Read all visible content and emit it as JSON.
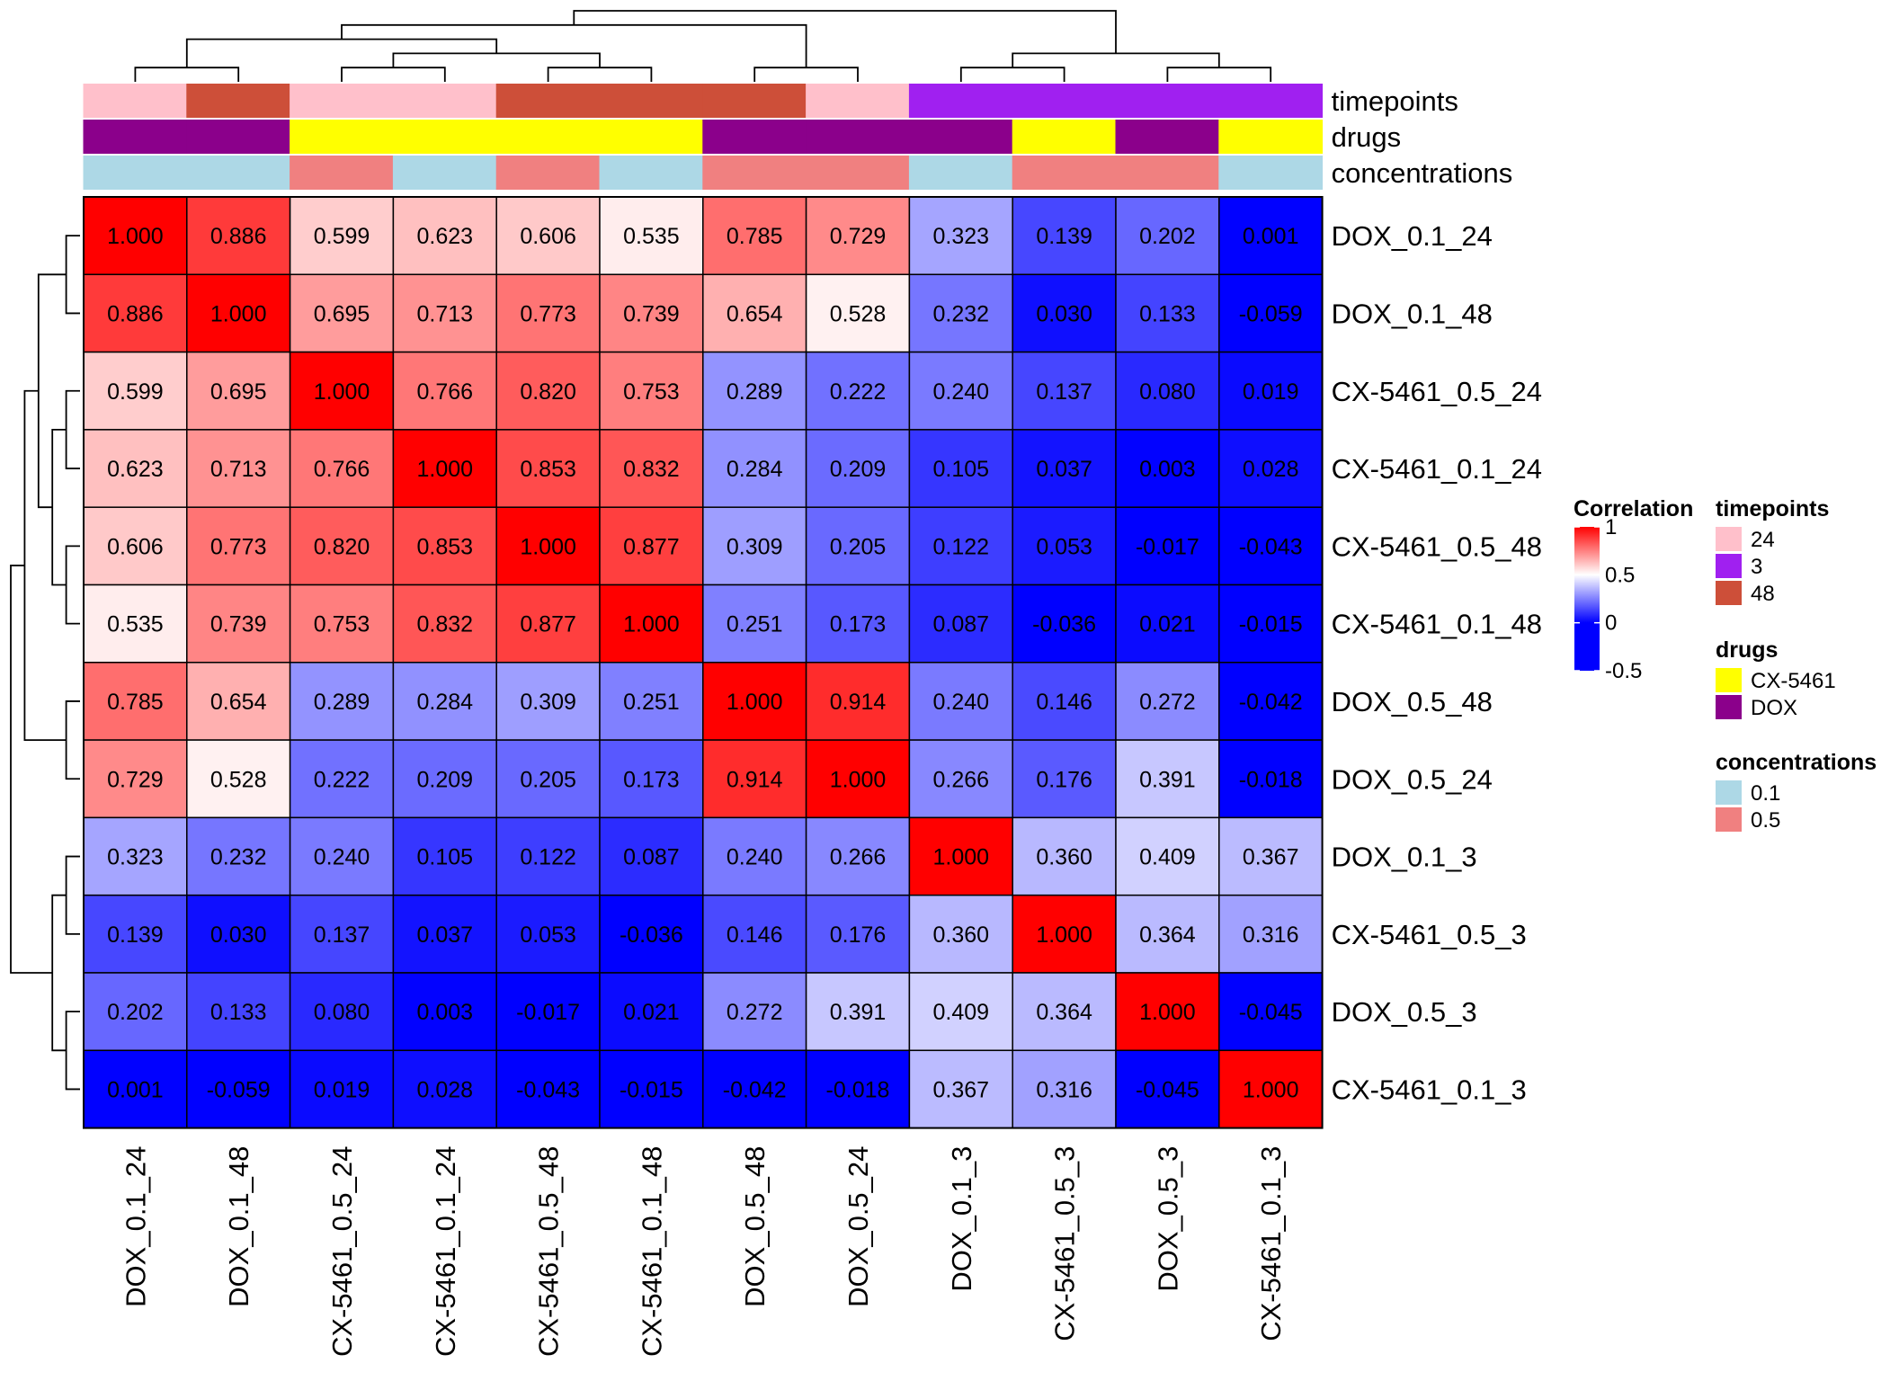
{
  "chart_data": {
    "type": "heatmap",
    "rows": [
      "DOX_0.1_24",
      "DOX_0.1_48",
      "CX-5461_0.5_24",
      "CX-5461_0.1_24",
      "CX-5461_0.5_48",
      "CX-5461_0.1_48",
      "DOX_0.5_48",
      "DOX_0.5_24",
      "DOX_0.1_3",
      "CX-5461_0.5_3",
      "DOX_0.5_3",
      "CX-5461_0.1_3"
    ],
    "columns": [
      "DOX_0.1_24",
      "DOX_0.1_48",
      "CX-5461_0.5_24",
      "CX-5461_0.1_24",
      "CX-5461_0.5_48",
      "CX-5461_0.1_48",
      "DOX_0.5_48",
      "DOX_0.5_24",
      "DOX_0.1_3",
      "CX-5461_0.5_3",
      "DOX_0.5_3",
      "CX-5461_0.1_3"
    ],
    "values": [
      [
        1.0,
        0.886,
        0.599,
        0.623,
        0.606,
        0.535,
        0.785,
        0.729,
        0.323,
        0.139,
        0.202,
        0.001
      ],
      [
        0.886,
        1.0,
        0.695,
        0.713,
        0.773,
        0.739,
        0.654,
        0.528,
        0.232,
        0.03,
        0.133,
        -0.059
      ],
      [
        0.599,
        0.695,
        1.0,
        0.766,
        0.82,
        0.753,
        0.289,
        0.222,
        0.24,
        0.137,
        0.08,
        0.019
      ],
      [
        0.623,
        0.713,
        0.766,
        1.0,
        0.853,
        0.832,
        0.284,
        0.209,
        0.105,
        0.037,
        0.003,
        0.028
      ],
      [
        0.606,
        0.773,
        0.82,
        0.853,
        1.0,
        0.877,
        0.309,
        0.205,
        0.122,
        0.053,
        -0.017,
        -0.043
      ],
      [
        0.535,
        0.739,
        0.753,
        0.832,
        0.877,
        1.0,
        0.251,
        0.173,
        0.087,
        -0.036,
        0.021,
        -0.015
      ],
      [
        0.785,
        0.654,
        0.289,
        0.284,
        0.309,
        0.251,
        1.0,
        0.914,
        0.24,
        0.146,
        0.272,
        -0.042
      ],
      [
        0.729,
        0.528,
        0.222,
        0.209,
        0.205,
        0.173,
        0.914,
        1.0,
        0.266,
        0.176,
        0.391,
        -0.018
      ],
      [
        0.323,
        0.232,
        0.24,
        0.105,
        0.122,
        0.087,
        0.24,
        0.266,
        1.0,
        0.36,
        0.409,
        0.367
      ],
      [
        0.139,
        0.03,
        0.137,
        0.037,
        0.053,
        -0.036,
        0.146,
        0.176,
        0.36,
        1.0,
        0.364,
        0.316
      ],
      [
        0.202,
        0.133,
        0.08,
        0.003,
        -0.017,
        0.021,
        0.272,
        0.391,
        0.409,
        0.364,
        1.0,
        -0.045
      ],
      [
        0.001,
        -0.059,
        0.019,
        0.028,
        -0.043,
        -0.015,
        -0.042,
        -0.018,
        0.367,
        0.316,
        -0.045,
        1.0
      ]
    ],
    "value_format": "3 decimals",
    "annotations": {
      "timepoints": {
        "label": "timepoints",
        "values": [
          "24",
          "48",
          "24",
          "24",
          "48",
          "48",
          "48",
          "24",
          "3",
          "3",
          "3",
          "3"
        ],
        "colors": {
          "24": "#FFC0CB",
          "3": "#A020F0",
          "48": "#CD4F39"
        }
      },
      "drugs": {
        "label": "drugs",
        "values": [
          "DOX",
          "DOX",
          "CX-5461",
          "CX-5461",
          "CX-5461",
          "CX-5461",
          "DOX",
          "DOX",
          "DOX",
          "CX-5461",
          "DOX",
          "CX-5461"
        ],
        "colors": {
          "CX-5461": "#FFFF00",
          "DOX": "#8B008B"
        }
      },
      "concentrations": {
        "label": "concentrations",
        "values": [
          "0.1",
          "0.1",
          "0.5",
          "0.1",
          "0.5",
          "0.1",
          "0.5",
          "0.5",
          "0.1",
          "0.5",
          "0.5",
          "0.1"
        ],
        "colors": {
          "0.1": "#ADD8E6",
          "0.5": "#F08080"
        }
      }
    },
    "color_scale": {
      "title": "Correlation",
      "ticks": [
        "1",
        "0.5",
        "0",
        "-0.5"
      ],
      "tick_values": [
        1,
        0.5,
        0,
        -0.5
      ],
      "range": [
        -0.5,
        1
      ],
      "stops": [
        {
          "value": -0.5,
          "color": "#0000FF"
        },
        {
          "value": 0,
          "color": "#0000FF"
        },
        {
          "value": 0.5,
          "color": "#FFFFFF"
        },
        {
          "value": 1,
          "color": "#FF0000"
        }
      ]
    },
    "legends": [
      {
        "title": "timepoints",
        "items": [
          {
            "label": "24",
            "color": "#FFC0CB"
          },
          {
            "label": "3",
            "color": "#A020F0"
          },
          {
            "label": "48",
            "color": "#CD4F39"
          }
        ]
      },
      {
        "title": "drugs",
        "items": [
          {
            "label": "CX-5461",
            "color": "#FFFF00"
          },
          {
            "label": "DOX",
            "color": "#8B008B"
          }
        ]
      },
      {
        "title": "concentrations",
        "items": [
          {
            "label": "0.1",
            "color": "#ADD8E6"
          },
          {
            "label": "0.5",
            "color": "#F08080"
          }
        ]
      }
    ],
    "column_dendrogram": [
      [
        0,
        1
      ],
      [
        2,
        3
      ],
      [
        4,
        5
      ],
      [
        -2,
        -3
      ],
      [
        -1,
        -4
      ],
      [
        6,
        7
      ],
      [
        -5,
        -6
      ],
      [
        8,
        9
      ],
      [
        10,
        11
      ],
      [
        -8,
        -9
      ],
      [
        -7,
        -10
      ]
    ],
    "row_dendrogram": [
      [
        0,
        1
      ],
      [
        2,
        3
      ],
      [
        4,
        5
      ],
      [
        -2,
        -3
      ],
      [
        -1,
        -4
      ],
      [
        6,
        7
      ],
      [
        -5,
        -6
      ],
      [
        8,
        9
      ],
      [
        10,
        11
      ],
      [
        -8,
        -9
      ],
      [
        -7,
        -10
      ]
    ]
  }
}
